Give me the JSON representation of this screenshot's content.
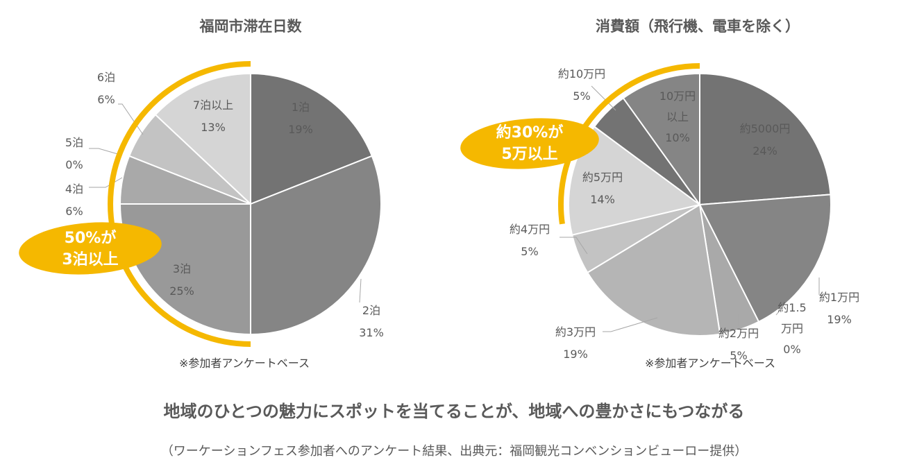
{
  "colors": {
    "accent": "#F5B800",
    "slices": [
      "#737373",
      "#858585",
      "#999999",
      "#A9A9A9",
      "#B5B5B5",
      "#C3C3C3",
      "#D5D5D5"
    ],
    "leader": "#A6A6A6"
  },
  "chart_data": [
    {
      "type": "pie",
      "title": "福岡市滞在日数",
      "slices": [
        {
          "label": "1泊",
          "value": 19,
          "pct": "19%"
        },
        {
          "label": "2泊",
          "value": 31,
          "pct": "31%"
        },
        {
          "label": "3泊",
          "value": 25,
          "pct": "25%"
        },
        {
          "label": "4泊",
          "value": 6,
          "pct": "6%"
        },
        {
          "label": "5泊",
          "value": 0,
          "pct": "0%"
        },
        {
          "label": "6泊",
          "value": 6,
          "pct": "6%"
        },
        {
          "label": "7泊以上",
          "value": 13,
          "pct": "13%"
        }
      ],
      "note": "※参加者アンケートベース",
      "callout": [
        "50%が",
        "3泊以上"
      ]
    },
    {
      "type": "pie",
      "title": "消費額（飛行機、電車を除く）",
      "slices": [
        {
          "label": "約5000円",
          "value": 24,
          "pct": "24%"
        },
        {
          "label": "約1万円",
          "value": 19,
          "pct": "19%"
        },
        {
          "label": "約1.5万円",
          "label_lines": [
            "約1.5",
            "万円"
          ],
          "value": 0,
          "pct": "0%"
        },
        {
          "label": "約2万円",
          "value": 5,
          "pct": "5%"
        },
        {
          "label": "約3万円",
          "value": 19,
          "pct": "19%"
        },
        {
          "label": "約4万円",
          "value": 5,
          "pct": "5%"
        },
        {
          "label": "約5万円",
          "value": 14,
          "pct": "14%"
        },
        {
          "label": "約10万円",
          "value": 5,
          "pct": "5%"
        },
        {
          "label": "10万円以上",
          "label_lines": [
            "10万円",
            "以上"
          ],
          "value": 10,
          "pct": "10%"
        }
      ],
      "note": "※参加者アンケートベース",
      "callout": [
        "約30%が",
        "5万以上"
      ]
    }
  ],
  "headline": "地域のひとつの魅力にスポットを当てることが、地域への豊かさにもつながる",
  "source": "（ワーケーションフェス参加者へのアンケート結果、出典元：福岡観光コンベンションビューロー提供）"
}
